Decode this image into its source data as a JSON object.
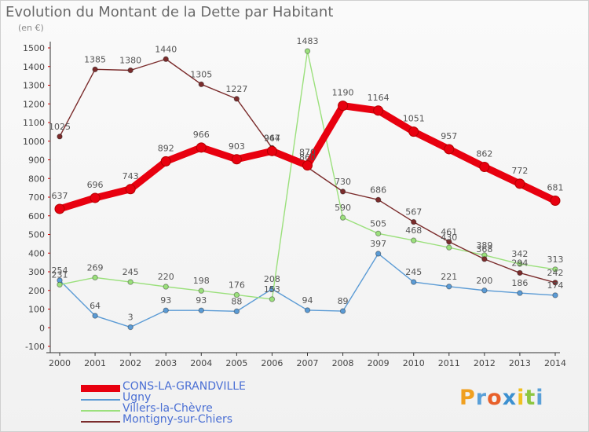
{
  "chart_data": {
    "type": "line",
    "title": "Evolution du Montant de la Dette par Habitant",
    "unit": "(en €)",
    "x": [
      2000,
      2001,
      2002,
      2003,
      2004,
      2005,
      2006,
      2007,
      2008,
      2009,
      2010,
      2011,
      2012,
      2013,
      2014
    ],
    "ylim": [
      -100,
      1500
    ],
    "yticks": [
      -100,
      0,
      100,
      200,
      300,
      400,
      500,
      600,
      700,
      800,
      900,
      1000,
      1100,
      1200,
      1300,
      1400,
      1500
    ],
    "grid": false,
    "legend_position": "bottom-left",
    "series": [
      {
        "name": "CONS-LA-GRANDVILLE",
        "color": "#e8000f",
        "style": "bold",
        "values": [
          637,
          696,
          743,
          892,
          966,
          903,
          947,
          870,
          1190,
          1164,
          1051,
          957,
          862,
          772,
          681
        ]
      },
      {
        "name": "Ugny",
        "color": "#5b9bd5",
        "style": "thin",
        "values": [
          254,
          64,
          3,
          93,
          93,
          88,
          208,
          94,
          89,
          397,
          245,
          221,
          200,
          186,
          174
        ]
      },
      {
        "name": "Villers-la-Chèvre",
        "color": "#9be07c",
        "style": "thin",
        "values": [
          231,
          269,
          245,
          220,
          198,
          176,
          153,
          1483,
          590,
          505,
          468,
          430,
          389,
          342,
          313
        ]
      },
      {
        "name": "Montigny-sur-Chiers",
        "color": "#7b2c2c",
        "style": "thin",
        "values": [
          1025,
          1385,
          1380,
          1440,
          1305,
          1227,
          964,
          860,
          730,
          686,
          567,
          461,
          368,
          294,
          242
        ]
      }
    ]
  },
  "brand": {
    "letters": [
      "P",
      "r",
      "o",
      "x",
      "i",
      "t",
      "i"
    ],
    "colors": [
      "#f0a020",
      "#5aa0d8",
      "#e8602a",
      "#3c90d0",
      "#f0c020",
      "#8cc640",
      "#5aa0d8"
    ]
  }
}
